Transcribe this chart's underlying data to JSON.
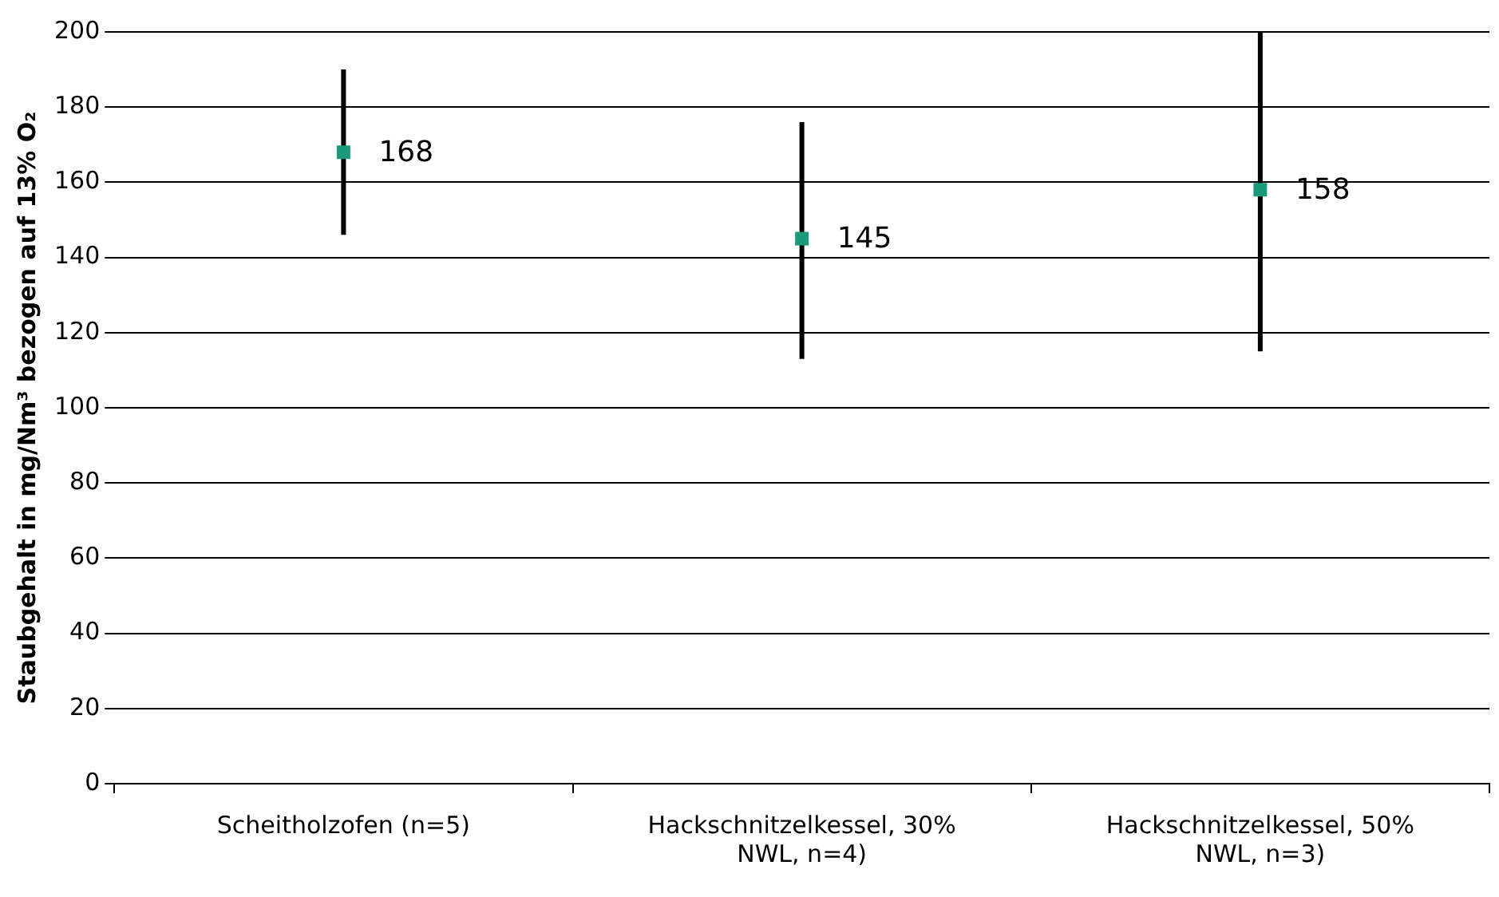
{
  "chart_data": {
    "type": "scatter",
    "ylabel": "Staubgehalt in mg/Nm³ bezogen auf 13% O₂",
    "categories": [
      "Scheitholzofen (n=5)",
      "Hackschnitzelkessel, 30% NWL, n=4)",
      "Hackschnitzelkessel, 50% NWL, n=3)"
    ],
    "values": [
      168,
      145,
      158
    ],
    "color": "#1a9a7a",
    "errors": [
      [
        146,
        190
      ],
      [
        113,
        176
      ],
      [
        115,
        200
      ]
    ],
    "data_labels": true,
    "ylim": [
      0,
      200
    ],
    "yticks": [
      0,
      20,
      40,
      60,
      80,
      100,
      120,
      140,
      160,
      180,
      200
    ],
    "grid": "y",
    "legend": false,
    "marker": "square"
  }
}
